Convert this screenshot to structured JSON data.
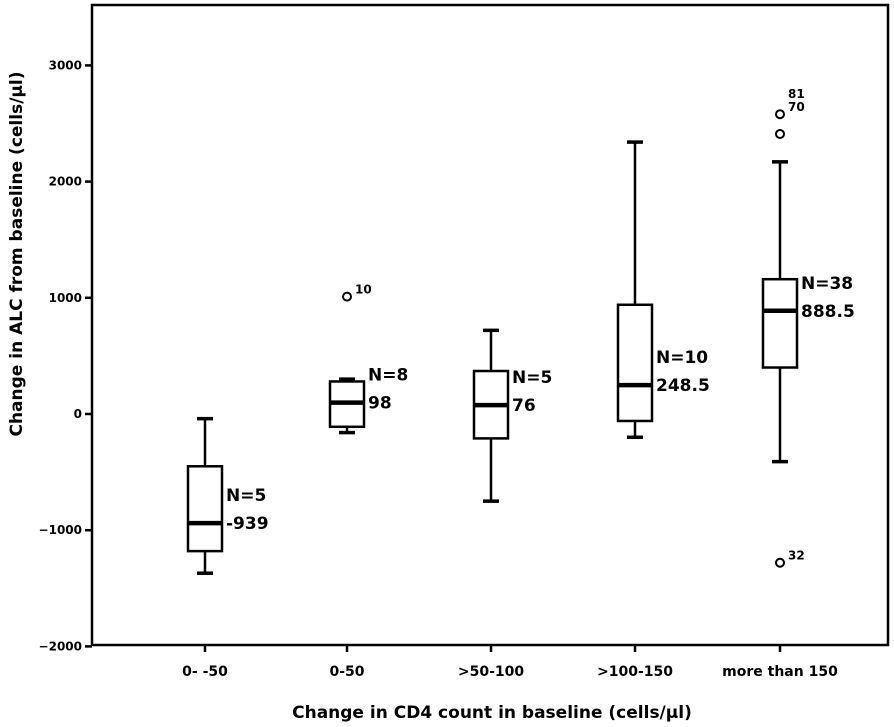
{
  "chart_data": {
    "type": "boxplot",
    "xlabel": "Change in CD4 count in baseline (cells/µl)",
    "ylabel": "Change in ALC from baseline (cells/µl)",
    "ylim": [
      -2000,
      3400
    ],
    "yticks": [
      -2000,
      -1000,
      0,
      1000,
      2000,
      3000
    ],
    "ytick_labels": [
      "−2000",
      "−1000",
      "0",
      "1000",
      "2000",
      "3000"
    ],
    "grid": false,
    "categories": [
      "0- -50",
      "0-50",
      ">50-100",
      ">100-150",
      "more than 150"
    ],
    "boxes": [
      {
        "category": "0- -50",
        "whisker_low": -1370,
        "q1": -1180,
        "median": -939,
        "q3": -450,
        "whisker_high": -40,
        "n_label": "N=5",
        "median_label": "-939",
        "outliers": []
      },
      {
        "category": "0-50",
        "whisker_low": -160,
        "q1": -110,
        "median": 98,
        "q3": 280,
        "whisker_high": 300,
        "n_label": "N=8",
        "median_label": "98",
        "outliers": [
          {
            "value": 1010,
            "label": "10"
          }
        ]
      },
      {
        "category": ">50-100",
        "whisker_low": -750,
        "q1": -210,
        "median": 76,
        "q3": 370,
        "whisker_high": 720,
        "n_label": "N=5",
        "median_label": "76",
        "outliers": []
      },
      {
        "category": ">100-150",
        "whisker_low": -200,
        "q1": -60,
        "median": 248.5,
        "q3": 940,
        "whisker_high": 2340,
        "n_label": "N=10",
        "median_label": "248.5",
        "outliers": []
      },
      {
        "category": "more than 150",
        "whisker_low": -410,
        "q1": 400,
        "median": 888.5,
        "q3": 1160,
        "whisker_high": 2170,
        "n_label": "N=38",
        "median_label": "888.5",
        "outliers": [
          {
            "value": 2580,
            "label": "70"
          },
          {
            "value": 2410,
            "label": ""
          },
          {
            "value": -1280,
            "label": "32"
          }
        ],
        "extra_labels": [
          "81"
        ]
      }
    ]
  }
}
